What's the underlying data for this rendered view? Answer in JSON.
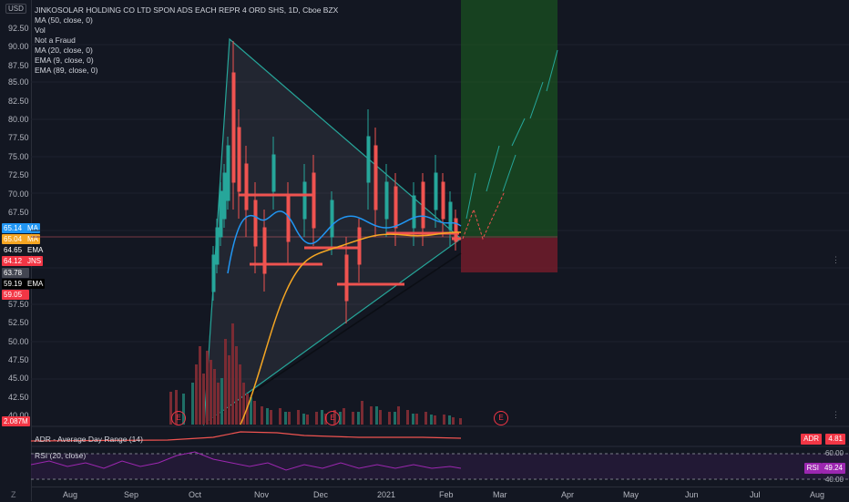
{
  "currency": "USD",
  "legend": {
    "title": "JINKOSOLAR HOLDING CO LTD SPON ADS EACH REPR 4 ORD SHS, 1D, Cboe BZX",
    "lines": [
      "MA (50, close, 0)",
      "Vol",
      "Not a Fraud",
      "MA (20, close, 0)",
      "EMA (9, close, 0)",
      "EMA (89, close, 0)"
    ]
  },
  "price_axis": {
    "labels": [
      "92.50",
      "90.00",
      "87.50",
      "85.00",
      "82.50",
      "80.00",
      "77.50",
      "75.00",
      "72.50",
      "70.00",
      "67.50",
      "65.00",
      "62.50",
      "60.00",
      "57.50",
      "55.00",
      "52.50",
      "50.00",
      "47.50",
      "45.00",
      "42.50",
      "40.00"
    ]
  },
  "chips": [
    {
      "value": "65.14",
      "tag": "MA",
      "color": "#2196f3"
    },
    {
      "value": "65.04",
      "tag": "MA",
      "color": "#f5a623"
    },
    {
      "value": "64.65",
      "tag": "EMA",
      "color": "#131722"
    },
    {
      "value": "64.12",
      "tag": "JNS",
      "color": "#f23645"
    },
    {
      "value": "63.78",
      "tag": "",
      "color": "#434651"
    },
    {
      "value": "59.19",
      "tag": "EMA",
      "color": "#000000"
    },
    {
      "value": "59.05",
      "tag": "",
      "color": "#f23645"
    }
  ],
  "volume_chip": {
    "value": "2.087M",
    "label": "Volume"
  },
  "adr": {
    "label": "ADR - Average Day Range (14)",
    "tag": "ADR",
    "value": "4.81"
  },
  "rsi": {
    "label": "RSI (20, close)",
    "tag": "RSI",
    "value": "49.24",
    "levels": [
      "60.00",
      "40.00"
    ]
  },
  "time_axis": [
    "Aug",
    "Sep",
    "Oct",
    "Nov",
    "Dec",
    "2021",
    "Jan",
    "Feb",
    "Mar",
    "Apr",
    "May",
    "Jun",
    "Jul",
    "Aug"
  ],
  "earnings_marker": "E",
  "colors": {
    "bg": "#131722",
    "up": "#26a69a",
    "down": "#ef5350",
    "ma": "#2196f3",
    "ma20": "#f5a623",
    "rsi": "#9c27b0"
  }
}
